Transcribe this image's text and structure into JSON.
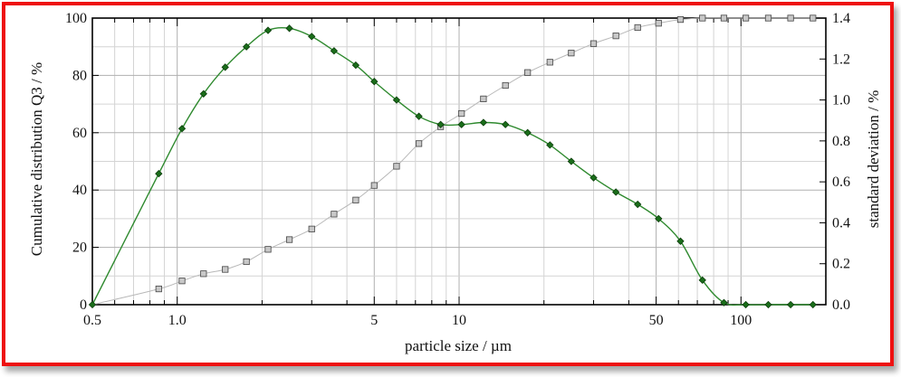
{
  "chart_data": {
    "type": "line",
    "title": "",
    "xlabel": "particle size / µm",
    "ylabel_left": "Cumulative distribution Q3 / %",
    "ylabel_right": "standard deviation / %",
    "x_scale": "log",
    "xlim": [
      0.5,
      200
    ],
    "ylim_left": [
      0,
      100
    ],
    "ylim_right": [
      0,
      1.4
    ],
    "grid": true,
    "x_ticks": [
      {
        "value": 0.5,
        "label": "0.5"
      },
      {
        "value": 1,
        "label": "1.0"
      },
      {
        "value": 5,
        "label": "5"
      },
      {
        "value": 10,
        "label": "10"
      },
      {
        "value": 50,
        "label": "50"
      },
      {
        "value": 100,
        "label": "100"
      }
    ],
    "y_ticks_left": [
      "0",
      "20",
      "40",
      "60",
      "80",
      "100"
    ],
    "y_ticks_right": [
      "0.0",
      "0.2",
      "0.4",
      "0.6",
      "0.8",
      "1.0",
      "1.2",
      "1.4"
    ],
    "series": [
      {
        "axis": "left",
        "marker": "square",
        "color": "#9a9a9a",
        "x": [
          0.5,
          0.86,
          1.04,
          1.24,
          1.48,
          1.76,
          2.1,
          2.5,
          3.0,
          3.6,
          4.3,
          5.0,
          6.0,
          7.2,
          8.6,
          10.2,
          12.2,
          14.6,
          17.5,
          21.0,
          25.0,
          30.0,
          36.0,
          43.0,
          51.0,
          61.0,
          73.0,
          87.0,
          104.0,
          125.0,
          150.0,
          180.0
        ],
        "values": [
          0,
          5.5,
          8.3,
          10.8,
          12.3,
          15.0,
          19.3,
          22.7,
          26.4,
          31.6,
          36.5,
          41.6,
          48.3,
          56.2,
          62.1,
          66.7,
          71.8,
          76.5,
          81.0,
          84.6,
          87.8,
          91.1,
          93.8,
          96.7,
          98.2,
          99.5,
          100,
          100,
          100,
          100,
          100,
          100
        ]
      },
      {
        "axis": "right",
        "marker": "diamond",
        "color": "#1a6e1a",
        "x": [
          0.5,
          0.86,
          1.04,
          1.24,
          1.48,
          1.76,
          2.1,
          2.5,
          3.0,
          3.6,
          4.3,
          5.0,
          6.0,
          7.2,
          8.6,
          10.2,
          12.2,
          14.6,
          17.5,
          21.0,
          25.0,
          30.0,
          36.0,
          43.0,
          51.0,
          61.0,
          73.0,
          87.0,
          104.0,
          125.0,
          150.0,
          180.0
        ],
        "values": [
          0,
          0.64,
          0.86,
          1.03,
          1.16,
          1.26,
          1.34,
          1.35,
          1.31,
          1.24,
          1.17,
          1.09,
          1.0,
          0.92,
          0.88,
          0.88,
          0.89,
          0.88,
          0.84,
          0.78,
          0.7,
          0.62,
          0.55,
          0.49,
          0.42,
          0.31,
          0.12,
          0.01,
          0,
          0,
          0,
          0
        ]
      }
    ]
  }
}
